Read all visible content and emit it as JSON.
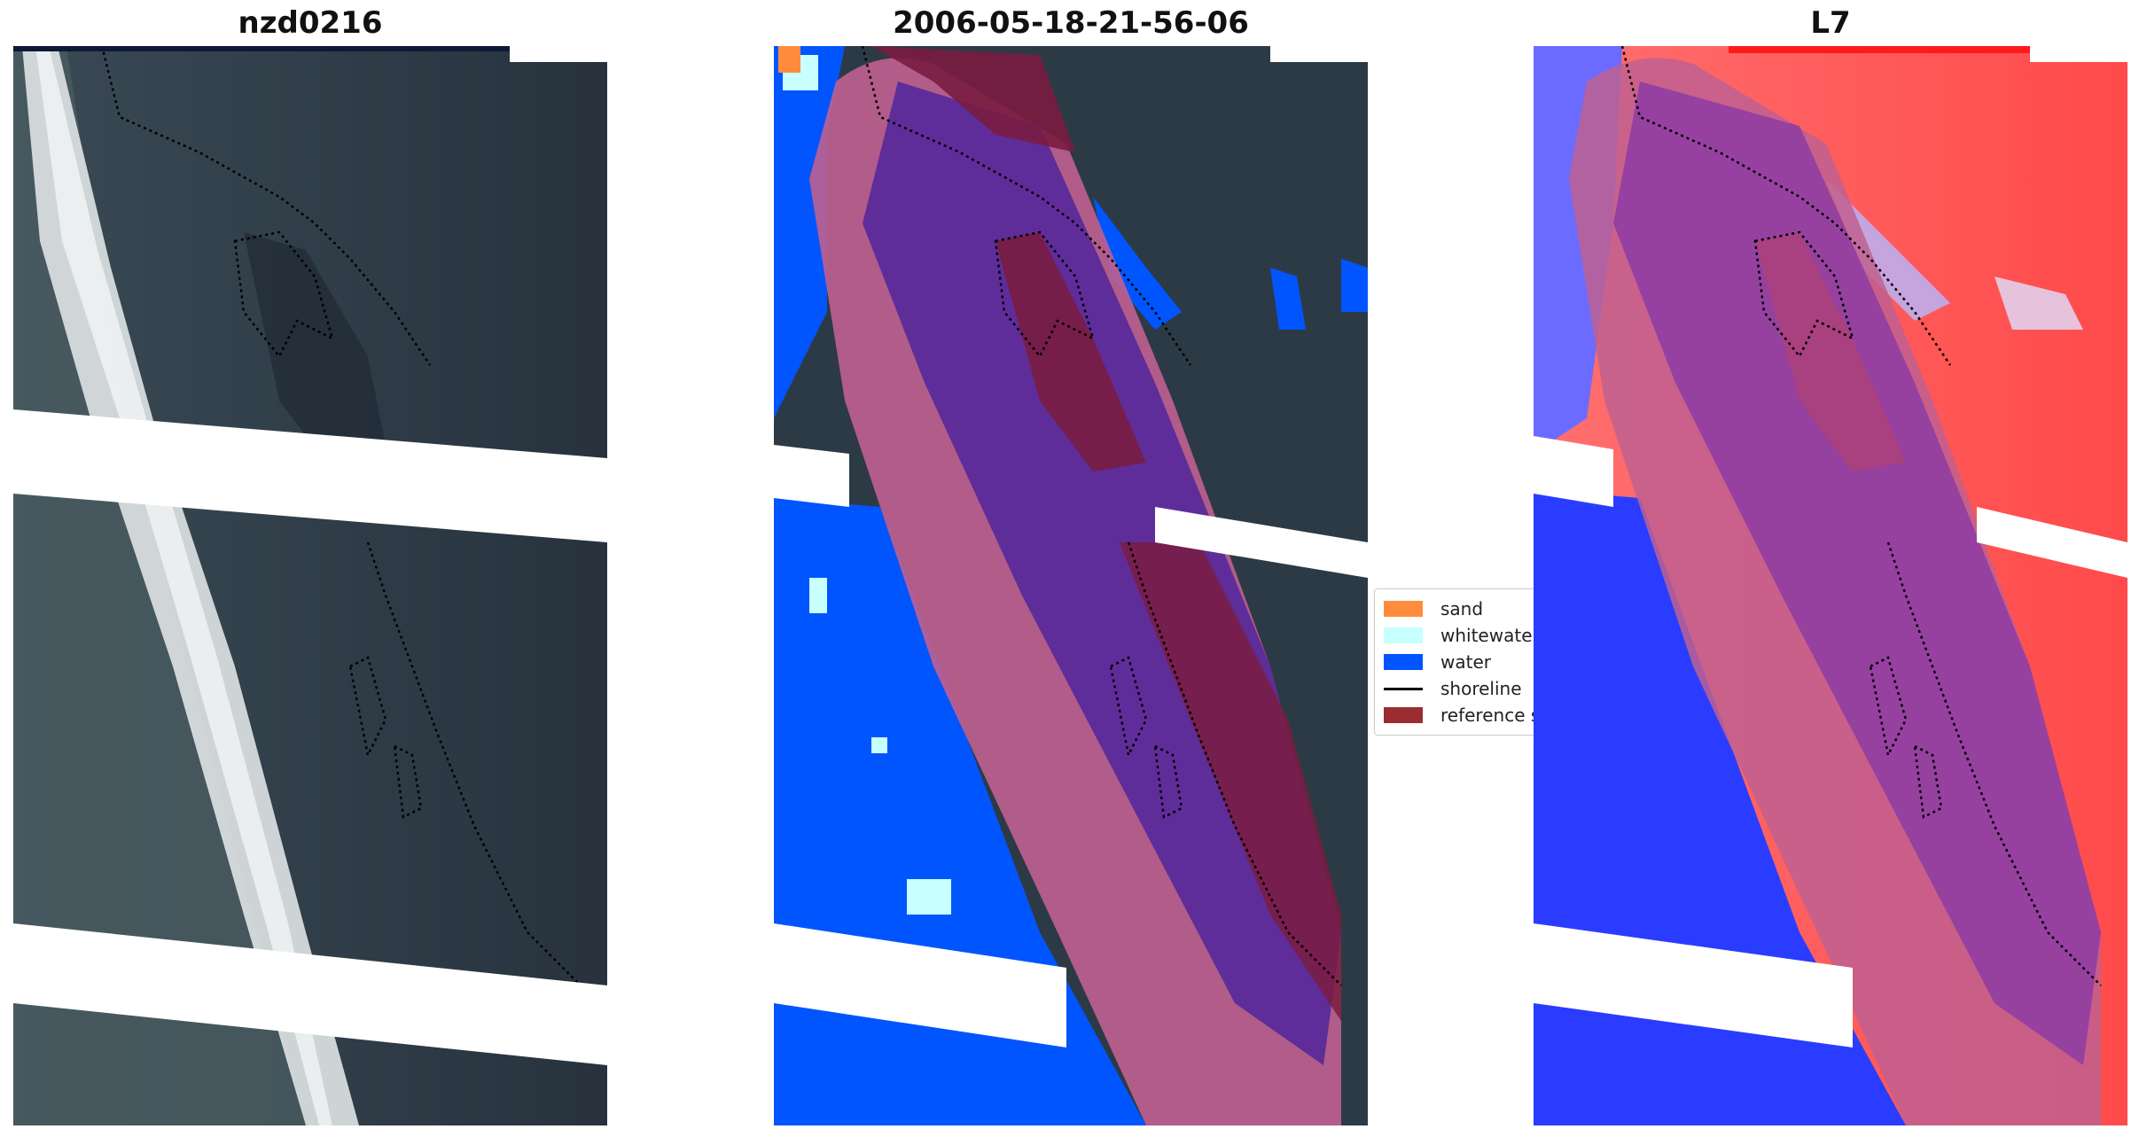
{
  "panels": [
    {
      "title": "nzd0216"
    },
    {
      "title": "2006-05-18-21-56-06"
    },
    {
      "title": "L7"
    }
  ],
  "legend": {
    "items": [
      {
        "label": "sand",
        "color": "#ff8c3c"
      },
      {
        "label": "whitewater",
        "color": "#c8ffff"
      },
      {
        "label": "water",
        "color": "#0055ff"
      },
      {
        "label": "shoreline",
        "color": "#000000"
      },
      {
        "label": "reference s",
        "color": "#9b2d30"
      }
    ]
  },
  "colors": {
    "land_dark": "#2c3a46",
    "surf_white": "#dfe4e6",
    "water_blue": "#0050f5",
    "overlay_purple": "#5b2a9a",
    "overlay_pink": "#c06090",
    "reference_maroon": "#7a1c40",
    "index_red": "#ff5a5a",
    "index_blue": "#2a3cff"
  }
}
